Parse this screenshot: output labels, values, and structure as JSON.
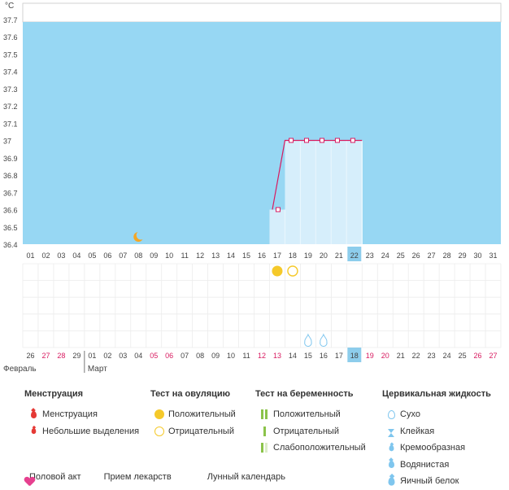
{
  "chart_data": {
    "type": "line",
    "ylabel": "°C",
    "y_ticks": [
      "37.7",
      "37.6",
      "37.5",
      "37.4",
      "37.3",
      "37.2",
      "37.1",
      "37",
      "36.9",
      "36.8",
      "36.7",
      "36.6",
      "36.5",
      "36.4"
    ],
    "ylim": [
      36.4,
      37.75
    ],
    "cycle_days": [
      "01",
      "02",
      "03",
      "04",
      "05",
      "06",
      "07",
      "08",
      "09",
      "10",
      "11",
      "12",
      "13",
      "14",
      "15",
      "16",
      "17",
      "18",
      "19",
      "20",
      "21",
      "22",
      "23",
      "24",
      "25",
      "26",
      "27",
      "28",
      "29",
      "30",
      "31"
    ],
    "current_cycle_day": "22",
    "series": [
      {
        "x": [
          "17",
          "18",
          "19",
          "20",
          "21",
          "22"
        ],
        "values": [
          36.6,
          37.0,
          37.0,
          37.0,
          37.0,
          37.0
        ]
      }
    ],
    "moon_day": "08",
    "ovulation_tests": [
      {
        "day": "17",
        "result": "positive"
      },
      {
        "day": "18",
        "result": "negative"
      }
    ],
    "cervical_fluid": [
      {
        "day": "19",
        "type": "dry"
      },
      {
        "day": "20",
        "type": "dry"
      }
    ],
    "calendar_dates": [
      {
        "d": "26",
        "red": false
      },
      {
        "d": "27",
        "red": true
      },
      {
        "d": "28",
        "red": true
      },
      {
        "d": "29",
        "red": false
      },
      {
        "d": "01",
        "red": false
      },
      {
        "d": "02",
        "red": false
      },
      {
        "d": "03",
        "red": false
      },
      {
        "d": "04",
        "red": false
      },
      {
        "d": "05",
        "red": true
      },
      {
        "d": "06",
        "red": true
      },
      {
        "d": "07",
        "red": false
      },
      {
        "d": "08",
        "red": false
      },
      {
        "d": "09",
        "red": false
      },
      {
        "d": "10",
        "red": false
      },
      {
        "d": "11",
        "red": false
      },
      {
        "d": "12",
        "red": true
      },
      {
        "d": "13",
        "red": true
      },
      {
        "d": "14",
        "red": false
      },
      {
        "d": "15",
        "red": false
      },
      {
        "d": "16",
        "red": false
      },
      {
        "d": "17",
        "red": false
      },
      {
        "d": "18",
        "red": false
      },
      {
        "d": "19",
        "red": true
      },
      {
        "d": "20",
        "red": true
      },
      {
        "d": "21",
        "red": false
      },
      {
        "d": "22",
        "red": false
      },
      {
        "d": "23",
        "red": false
      },
      {
        "d": "24",
        "red": false
      },
      {
        "d": "25",
        "red": false
      },
      {
        "d": "26",
        "red": true
      },
      {
        "d": "27",
        "red": true
      }
    ],
    "months": [
      {
        "name": "Февраль",
        "start_index": 0
      },
      {
        "name": "Март",
        "start_index": 4
      }
    ],
    "colors": {
      "background": "#97d7f3",
      "luteal_fill": "#d6eefb",
      "line": "#d81b60",
      "highlight": "#8dcdec",
      "weekend": "#d81b60"
    }
  },
  "legend": {
    "menstruation": {
      "title": "Менструация",
      "items": [
        {
          "label": "Менструация",
          "icon": "blood-drop-icon"
        },
        {
          "label": "Небольшие выделения",
          "icon": "small-blood-drop-icon"
        }
      ]
    },
    "ovulation_test": {
      "title": "Тест на овуляцию",
      "items": [
        {
          "label": "Положительный",
          "icon": "filled-circle-icon"
        },
        {
          "label": "Отрицательный",
          "icon": "outline-circle-icon"
        }
      ]
    },
    "pregnancy_test": {
      "title": "Тест на беременность",
      "items": [
        {
          "label": "Положительный",
          "icon": "two-lines-icon"
        },
        {
          "label": "Отрицательный",
          "icon": "one-line-icon"
        },
        {
          "label": "Слабоположительный",
          "icon": "faint-lines-icon"
        }
      ]
    },
    "cervical_fluid": {
      "title": "Цервикальная жидкость",
      "items": [
        {
          "label": "Сухо",
          "icon": "outline-drop-icon"
        },
        {
          "label": "Клейкая",
          "icon": "hourglass-icon"
        },
        {
          "label": "Кремообразная",
          "icon": "cream-drop-icon"
        },
        {
          "label": "Водянистая",
          "icon": "water-drop-icon"
        },
        {
          "label": "Яичный белок",
          "icon": "egg-white-drop-icon"
        }
      ]
    }
  },
  "footer": {
    "intercourse": "Половой акт",
    "medication": "Прием лекарств",
    "lunar": "Лунный календарь"
  }
}
